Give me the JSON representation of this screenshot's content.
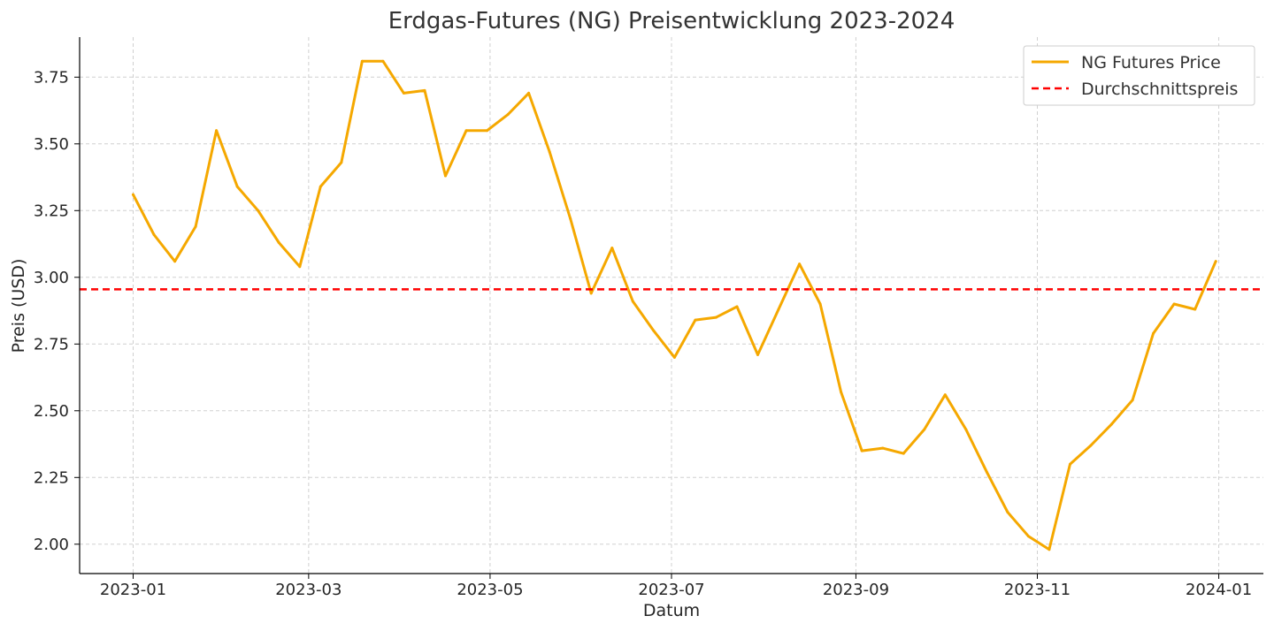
{
  "chart_data": {
    "type": "line",
    "title": "Erdgas-Futures (NG) Preisentwicklung 2023-2024",
    "xlabel": "Datum",
    "ylabel": "Preis (USD)",
    "x_tick_labels": [
      "2023-01",
      "2023-03",
      "2023-05",
      "2023-07",
      "2023-09",
      "2023-11",
      "2024-01"
    ],
    "y_tick_labels": [
      "2.00",
      "2.25",
      "2.50",
      "2.75",
      "3.00",
      "3.25",
      "3.50",
      "3.75"
    ],
    "y_ticks": [
      2.0,
      2.25,
      2.5,
      2.75,
      3.0,
      3.25,
      3.5,
      3.75
    ],
    "xlim": [
      "2022-12-14",
      "2024-01-16"
    ],
    "ylim": [
      1.89,
      3.9
    ],
    "grid": true,
    "legend_position": "top-right",
    "series": [
      {
        "name": "NG Futures Price",
        "color": "#f5a800",
        "style": "solid",
        "x": [
          "2023-01-01",
          "2023-01-08",
          "2023-01-15",
          "2023-01-22",
          "2023-01-29",
          "2023-02-05",
          "2023-02-12",
          "2023-02-19",
          "2023-02-26",
          "2023-03-05",
          "2023-03-12",
          "2023-03-19",
          "2023-03-26",
          "2023-04-02",
          "2023-04-09",
          "2023-04-16",
          "2023-04-23",
          "2023-04-30",
          "2023-05-07",
          "2023-05-14",
          "2023-05-21",
          "2023-05-28",
          "2023-06-04",
          "2023-06-11",
          "2023-06-18",
          "2023-06-25",
          "2023-07-02",
          "2023-07-09",
          "2023-07-16",
          "2023-07-23",
          "2023-07-30",
          "2023-08-06",
          "2023-08-13",
          "2023-08-20",
          "2023-08-27",
          "2023-09-03",
          "2023-09-10",
          "2023-09-17",
          "2023-09-24",
          "2023-10-01",
          "2023-10-08",
          "2023-10-15",
          "2023-10-22",
          "2023-10-29",
          "2023-11-05",
          "2023-11-12",
          "2023-11-19",
          "2023-11-26",
          "2023-12-03",
          "2023-12-10",
          "2023-12-17",
          "2023-12-24",
          "2023-12-31"
        ],
        "values": [
          3.31,
          3.16,
          3.06,
          3.19,
          3.55,
          3.34,
          3.25,
          3.13,
          3.04,
          3.34,
          3.43,
          3.81,
          3.81,
          3.69,
          3.7,
          3.38,
          3.55,
          3.55,
          3.61,
          3.69,
          3.47,
          3.22,
          2.94,
          3.11,
          2.91,
          2.8,
          2.7,
          2.84,
          2.85,
          2.89,
          2.71,
          2.88,
          3.05,
          2.9,
          2.57,
          2.35,
          2.36,
          2.34,
          2.43,
          2.56,
          2.43,
          2.27,
          2.12,
          2.03,
          1.98,
          2.3,
          2.37,
          2.45,
          2.54,
          2.79,
          2.9,
          2.88,
          3.06
        ]
      },
      {
        "name": "Durchschnittspreis",
        "color": "#ff0000",
        "style": "dashed",
        "constant": 2.955
      }
    ]
  }
}
